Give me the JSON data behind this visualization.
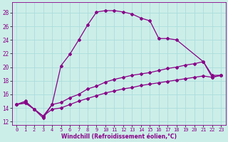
{
  "xlabel": "Windchill (Refroidissement éolien,°C)",
  "bg_color": "#cceee8",
  "line_color": "#880088",
  "spine_color": "#880088",
  "xlim": [
    -0.5,
    23.5
  ],
  "ylim": [
    11.5,
    29.5
  ],
  "xticks": [
    0,
    1,
    2,
    3,
    4,
    5,
    6,
    7,
    8,
    9,
    10,
    11,
    12,
    13,
    14,
    15,
    16,
    17,
    18,
    19,
    20,
    21,
    22,
    23
  ],
  "yticks": [
    12,
    14,
    16,
    18,
    20,
    22,
    24,
    26,
    28
  ],
  "grid_color": "#aadddd",
  "series": [
    {
      "x": [
        0,
        1,
        2,
        3,
        4,
        5,
        6,
        7,
        8,
        9,
        10,
        11,
        12,
        13,
        14,
        15,
        16,
        17,
        18,
        21,
        22,
        23
      ],
      "y": [
        14.5,
        15.0,
        13.8,
        12.5,
        14.5,
        20.2,
        21.9,
        24.0,
        26.2,
        28.1,
        28.3,
        28.3,
        28.1,
        27.8,
        27.2,
        26.8,
        24.2,
        24.2,
        24.0,
        20.8,
        18.8,
        18.8
      ]
    },
    {
      "x": [
        0,
        1,
        2,
        3,
        4,
        5,
        6,
        7,
        8,
        9,
        10,
        11,
        12,
        13,
        14,
        15,
        16,
        17,
        18,
        19,
        20,
        21,
        22,
        23
      ],
      "y": [
        14.5,
        14.8,
        13.8,
        12.8,
        14.5,
        14.8,
        15.5,
        16.0,
        16.8,
        17.2,
        17.8,
        18.2,
        18.5,
        18.8,
        19.0,
        19.2,
        19.5,
        19.8,
        20.0,
        20.3,
        20.5,
        20.8,
        18.5,
        18.8
      ]
    },
    {
      "x": [
        0,
        1,
        2,
        3,
        4,
        5,
        6,
        7,
        8,
        9,
        10,
        11,
        12,
        13,
        14,
        15,
        16,
        17,
        18,
        19,
        20,
        21,
        22,
        23
      ],
      "y": [
        14.5,
        14.7,
        13.8,
        12.8,
        13.8,
        14.0,
        14.5,
        15.0,
        15.4,
        15.8,
        16.2,
        16.5,
        16.8,
        17.0,
        17.3,
        17.5,
        17.7,
        17.9,
        18.1,
        18.3,
        18.5,
        18.7,
        18.5,
        18.8
      ]
    }
  ],
  "xtick_fontsize": 5.0,
  "ytick_fontsize": 5.5,
  "xlabel_fontsize": 5.5
}
